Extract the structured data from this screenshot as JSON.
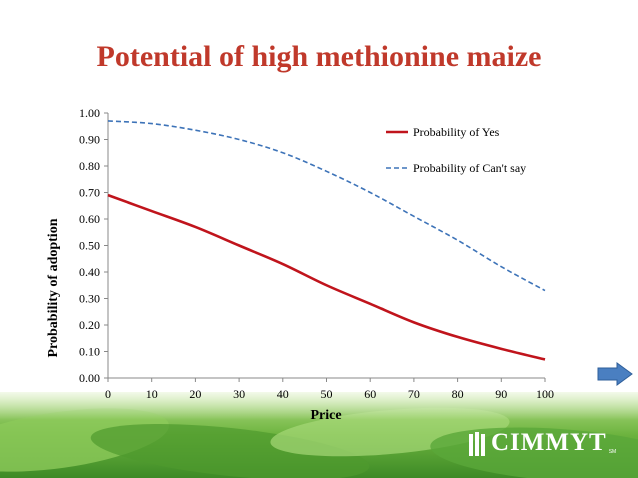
{
  "slide": {
    "title": "Potential of high methionine maize",
    "logo_text": "CIMMYT",
    "logo_mark": "SM"
  },
  "colors": {
    "title": "#c0392b",
    "series_yes": "#c0141c",
    "series_cant": "#3d73b8",
    "arrow": "#4a7fc1",
    "footer_green": "#5aa83a"
  },
  "icons": {
    "next": "right-arrow-icon",
    "logo": "cimmyt-wheat-logo-icon"
  },
  "chart_data": {
    "type": "line",
    "xlabel": "Price",
    "ylabel": "Probability of adoption",
    "xlim": [
      0,
      100
    ],
    "ylim": [
      0,
      1
    ],
    "x_ticks": [
      "0",
      "10",
      "20",
      "30",
      "40",
      "50",
      "60",
      "70",
      "80",
      "90",
      "100"
    ],
    "y_ticks": [
      "0.00",
      "0.10",
      "0.20",
      "0.30",
      "0.40",
      "0.50",
      "0.60",
      "0.70",
      "0.80",
      "0.90",
      "1.00"
    ],
    "grid": false,
    "legend_position": "top-right",
    "x": [
      0,
      10,
      20,
      30,
      40,
      50,
      60,
      70,
      80,
      90,
      100
    ],
    "series": [
      {
        "name": "Probability of Yes",
        "style": "solid",
        "values": [
          0.69,
          0.63,
          0.57,
          0.5,
          0.43,
          0.35,
          0.28,
          0.21,
          0.155,
          0.11,
          0.07
        ]
      },
      {
        "name": "Probability of Can't say",
        "style": "dashed",
        "values": [
          0.97,
          0.96,
          0.935,
          0.9,
          0.85,
          0.78,
          0.7,
          0.61,
          0.52,
          0.42,
          0.33
        ]
      }
    ]
  }
}
